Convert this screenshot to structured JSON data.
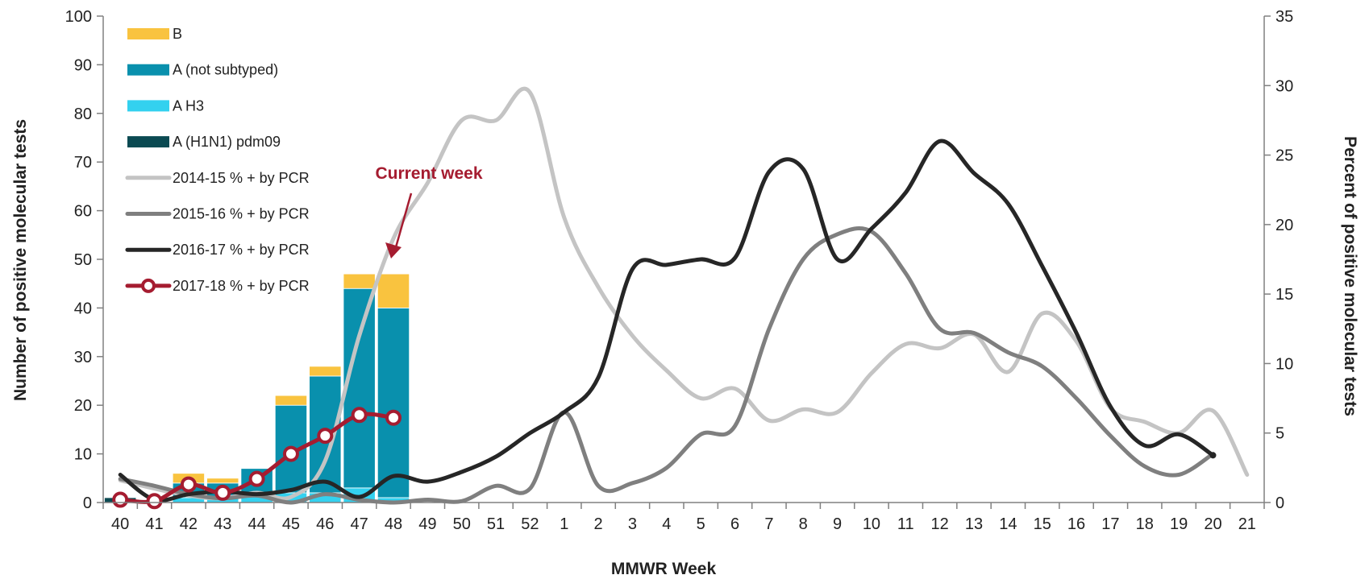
{
  "chart_data": {
    "type": "bar",
    "xlabel": "MMWR Week",
    "ylabel": "Number of positive molecular tests",
    "y2label": "Percent of positive molecular tests",
    "ylim": [
      0,
      100
    ],
    "y2lim": [
      0,
      35
    ],
    "yticks": [
      "0",
      "10",
      "20",
      "30",
      "40",
      "50",
      "60",
      "70",
      "80",
      "90",
      "100"
    ],
    "y2ticks": [
      "0",
      "5",
      "10",
      "15",
      "20",
      "25",
      "30",
      "35"
    ],
    "categories": [
      "40",
      "41",
      "42",
      "43",
      "44",
      "45",
      "46",
      "47",
      "48",
      "49",
      "50",
      "51",
      "52",
      "1",
      "2",
      "3",
      "4",
      "5",
      "6",
      "7",
      "8",
      "9",
      "10",
      "11",
      "12",
      "13",
      "14",
      "15",
      "16",
      "17",
      "18",
      "19",
      "20",
      "21"
    ],
    "grid": false,
    "legend_position": "top-left",
    "bar_series": [
      {
        "name": "A (H1N1) pdm09",
        "color": "#0b4a52",
        "values": [
          1,
          0,
          0,
          0,
          0,
          0,
          0,
          0,
          0
        ]
      },
      {
        "name": "A H3",
        "color": "#33d1ef",
        "values": [
          0,
          0,
          1,
          1,
          2,
          2,
          2,
          3,
          1
        ]
      },
      {
        "name": "A (not subtyped)",
        "color": "#0990ad",
        "values": [
          0,
          0,
          3,
          3,
          5,
          18,
          24,
          41,
          39
        ]
      },
      {
        "name": "B",
        "color": "#f9c33f",
        "values": [
          0,
          0,
          2,
          1,
          0,
          2,
          2,
          3,
          7
        ]
      }
    ],
    "line_series": [
      {
        "name": "2014-15 % + by PCR",
        "color": "#c4c4c4",
        "values": [
          1.6,
          1.0,
          0.5,
          0.3,
          0.7,
          0.4,
          3.0,
          12.0,
          19.0,
          23.0,
          27.5,
          27.5,
          29.5,
          20.5,
          15.5,
          12.0,
          9.5,
          7.5,
          8.2,
          5.9,
          6.7,
          6.5,
          9.3,
          11.4,
          11.1,
          12.1,
          9.4,
          13.6,
          11.6,
          6.8,
          5.8,
          5.0,
          6.6,
          2.0
        ]
      },
      {
        "name": "2015-16 % + by PCR",
        "color": "#7f7f7f",
        "values": [
          1.7,
          1.2,
          0.6,
          0.3,
          0.5,
          0.0,
          0.6,
          0.2,
          0.0,
          0.2,
          0.1,
          1.2,
          1.0,
          6.5,
          1.2,
          1.4,
          2.5,
          4.9,
          5.5,
          12.5,
          17.5,
          19.3,
          19.5,
          16.5,
          12.5,
          12.2,
          10.8,
          9.8,
          7.5,
          4.8,
          2.6,
          2.0,
          3.5,
          null
        ]
      },
      {
        "name": "2016-17 % + by PCR",
        "color": "#262626",
        "values": [
          2.0,
          0.2,
          0.6,
          0.8,
          0.6,
          0.9,
          1.5,
          0.4,
          1.9,
          1.5,
          2.2,
          3.3,
          5.0,
          6.5,
          9.0,
          16.8,
          17.1,
          17.5,
          17.6,
          23.8,
          24.0,
          17.5,
          19.7,
          22.3,
          26.0,
          23.7,
          21.5,
          17.0,
          12.2,
          6.9,
          4.1,
          4.9,
          3.4,
          null
        ]
      },
      {
        "name": "2017-18 % + by PCR",
        "color": "#a51c30",
        "markers": true,
        "values": [
          0.2,
          0.1,
          1.3,
          0.7,
          1.7,
          3.5,
          4.8,
          6.3,
          6.1
        ]
      }
    ],
    "legend_order": [
      "B",
      "A (not subtyped)",
      "A H3",
      "A (H1N1) pdm09",
      "2014-15 % + by PCR",
      "2015-16 % + by PCR",
      "2016-17 % + by PCR",
      "2017-18 % + by PCR"
    ],
    "annotation": {
      "text": "Current week",
      "color": "#a51c30",
      "points_to_category": "48"
    }
  }
}
